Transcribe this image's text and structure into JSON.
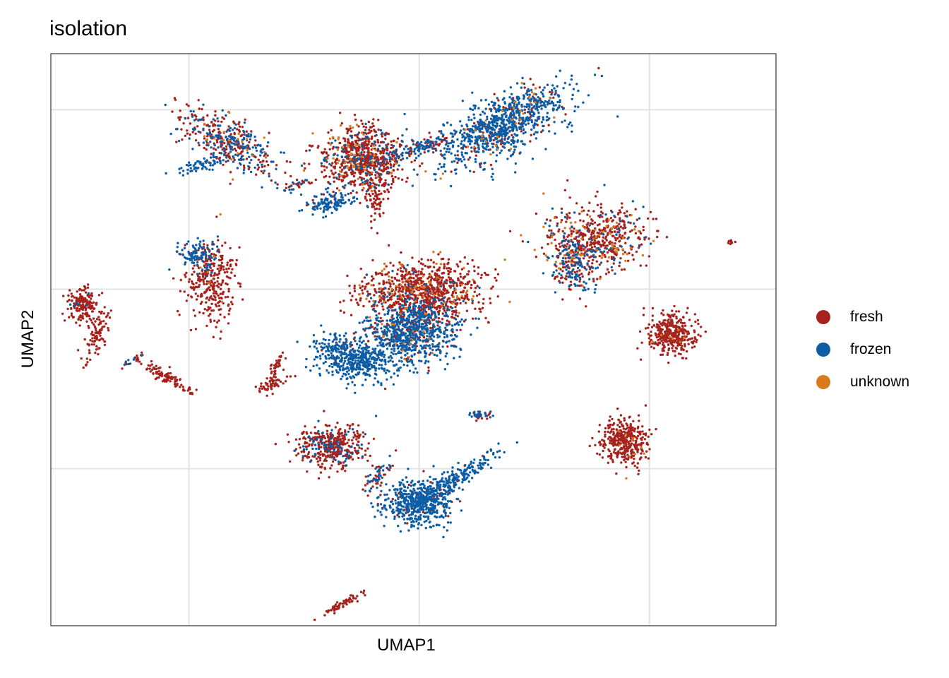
{
  "chart_data": {
    "type": "scatter",
    "title": "isolation",
    "xlabel": "UMAP1",
    "ylabel": "UMAP2",
    "x_tick_labels": [],
    "y_tick_labels": [],
    "grid": true,
    "legend_position": "right",
    "series": [
      {
        "name": "fresh",
        "color": "#A6231D"
      },
      {
        "name": "frozen",
        "color": "#0C5DA6"
      },
      {
        "name": "unknown",
        "color": "#D97A1E"
      }
    ],
    "clusters": [
      {
        "cx": -8.3,
        "cy": 6.6,
        "sx": 1.1,
        "sy": 0.5,
        "angle": -25,
        "n": 420,
        "mix": [
          0.55,
          0.4,
          0.05
        ]
      },
      {
        "cx": -9.5,
        "cy": 5.5,
        "sx": 0.5,
        "sy": 0.12,
        "angle": 15,
        "n": 60,
        "mix": [
          0,
          1,
          0
        ]
      },
      {
        "cx": -2.4,
        "cy": 5.8,
        "sx": 0.9,
        "sy": 0.75,
        "angle": 0,
        "n": 800,
        "mix": [
          0.75,
          0.17,
          0.08
        ]
      },
      {
        "cx": 3.7,
        "cy": 7.3,
        "sx": 1.5,
        "sy": 0.6,
        "angle": 28,
        "n": 900,
        "mix": [
          0.15,
          0.82,
          0.03
        ]
      },
      {
        "cx": 0.3,
        "cy": 6.4,
        "sx": 0.8,
        "sy": 0.15,
        "angle": 20,
        "n": 120,
        "mix": [
          0.3,
          0.7,
          0
        ]
      },
      {
        "cx": -1.9,
        "cy": 4.0,
        "sx": 0.18,
        "sy": 0.5,
        "angle": 0,
        "n": 60,
        "mix": [
          1,
          0,
          0
        ]
      },
      {
        "cx": -5.4,
        "cy": 4.6,
        "sx": 0.35,
        "sy": 0.1,
        "angle": 20,
        "n": 30,
        "mix": [
          0.6,
          0.4,
          0
        ]
      },
      {
        "cx": -3.9,
        "cy": 3.9,
        "sx": 0.5,
        "sy": 0.25,
        "angle": 10,
        "n": 120,
        "mix": [
          0.05,
          0.95,
          0
        ]
      },
      {
        "cx": 7.8,
        "cy": 2.3,
        "sx": 1.1,
        "sy": 0.7,
        "angle": 0,
        "n": 520,
        "mix": [
          0.75,
          0.15,
          0.1
        ]
      },
      {
        "cx": 6.6,
        "cy": 1.1,
        "sx": 0.5,
        "sy": 0.7,
        "angle": 20,
        "n": 220,
        "mix": [
          0.45,
          0.5,
          0.05
        ]
      },
      {
        "cx": 13.5,
        "cy": 2.1,
        "sx": 0.07,
        "sy": 0.05,
        "angle": 0,
        "n": 10,
        "mix": [
          1,
          0,
          0
        ]
      },
      {
        "cx": -9.6,
        "cy": 1.5,
        "sx": 0.45,
        "sy": 0.35,
        "angle": 0,
        "n": 110,
        "mix": [
          0.1,
          0.9,
          0
        ]
      },
      {
        "cx": -9.0,
        "cy": 0.4,
        "sx": 0.55,
        "sy": 0.9,
        "angle": 0,
        "n": 300,
        "mix": [
          0.97,
          0,
          0.03
        ]
      },
      {
        "cx": -14.6,
        "cy": -0.8,
        "sx": 0.35,
        "sy": 0.45,
        "angle": 0,
        "n": 170,
        "mix": [
          0.97,
          0.03,
          0
        ]
      },
      {
        "cx": -14.0,
        "cy": -2.0,
        "sx": 0.25,
        "sy": 0.6,
        "angle": -15,
        "n": 90,
        "mix": [
          1,
          0,
          0
        ]
      },
      {
        "cx": -11.0,
        "cy": -3.9,
        "sx": 0.7,
        "sy": 0.13,
        "angle": -30,
        "n": 100,
        "mix": [
          1,
          0,
          0
        ]
      },
      {
        "cx": -12.5,
        "cy": -3.2,
        "sx": 0.35,
        "sy": 0.08,
        "angle": 30,
        "n": 20,
        "mix": [
          0.5,
          0.5,
          0
        ]
      },
      {
        "cx": 0.1,
        "cy": -0.1,
        "sx": 1.25,
        "sy": 0.65,
        "angle": 0,
        "n": 900,
        "mix": [
          0.9,
          0.03,
          0.07
        ]
      },
      {
        "cx": -0.4,
        "cy": -1.9,
        "sx": 1.0,
        "sy": 0.7,
        "angle": 0,
        "n": 800,
        "mix": [
          0.15,
          0.83,
          0.02
        ]
      },
      {
        "cx": -2.9,
        "cy": -3.1,
        "sx": 0.9,
        "sy": 0.45,
        "angle": -15,
        "n": 500,
        "mix": [
          0.02,
          0.98,
          0
        ]
      },
      {
        "cx": -6.3,
        "cy": -3.8,
        "sx": 0.12,
        "sy": 0.55,
        "angle": -20,
        "n": 50,
        "mix": [
          1,
          0,
          0
        ]
      },
      {
        "cx": -6.3,
        "cy": -4.2,
        "sx": 0.5,
        "sy": 0.12,
        "angle": 20,
        "n": 40,
        "mix": [
          1,
          0,
          0
        ]
      },
      {
        "cx": 2.6,
        "cy": -5.6,
        "sx": 0.25,
        "sy": 0.1,
        "angle": 0,
        "n": 40,
        "mix": [
          0.6,
          0.4,
          0
        ]
      },
      {
        "cx": 11.0,
        "cy": -2.0,
        "sx": 0.5,
        "sy": 0.45,
        "angle": 0,
        "n": 380,
        "mix": [
          0.98,
          0,
          0.02
        ]
      },
      {
        "cx": 8.9,
        "cy": -6.8,
        "sx": 0.5,
        "sy": 0.55,
        "angle": 0,
        "n": 380,
        "mix": [
          0.97,
          0,
          0.03
        ]
      },
      {
        "cx": -5.0,
        "cy": -6.4,
        "sx": 0.06,
        "sy": 0.05,
        "angle": 0,
        "n": 6,
        "mix": [
          1,
          0,
          0
        ]
      },
      {
        "cx": -3.8,
        "cy": -7.0,
        "sx": 0.75,
        "sy": 0.45,
        "angle": 0,
        "n": 420,
        "mix": [
          0.85,
          0.15,
          0
        ]
      },
      {
        "cx": -1.8,
        "cy": -8.3,
        "sx": 0.18,
        "sy": 0.45,
        "angle": -40,
        "n": 60,
        "mix": [
          0.6,
          0.4,
          0
        ]
      },
      {
        "cx": 0.0,
        "cy": -9.5,
        "sx": 0.75,
        "sy": 0.5,
        "angle": 0,
        "n": 550,
        "mix": [
          0.08,
          0.92,
          0
        ]
      },
      {
        "cx": 1.6,
        "cy": -8.4,
        "sx": 1.0,
        "sy": 0.2,
        "angle": 32,
        "n": 200,
        "mix": [
          0.05,
          0.95,
          0
        ]
      },
      {
        "cx": -3.3,
        "cy": -14.0,
        "sx": 0.6,
        "sy": 0.1,
        "angle": 30,
        "n": 60,
        "mix": [
          1,
          0,
          0
        ]
      }
    ],
    "xlim": [
      -16,
      15.5
    ],
    "ylim": [
      -15,
      10.5
    ],
    "x_gridlines": [
      -10,
      0,
      10
    ],
    "y_gridlines": [
      8,
      0,
      -8
    ]
  }
}
